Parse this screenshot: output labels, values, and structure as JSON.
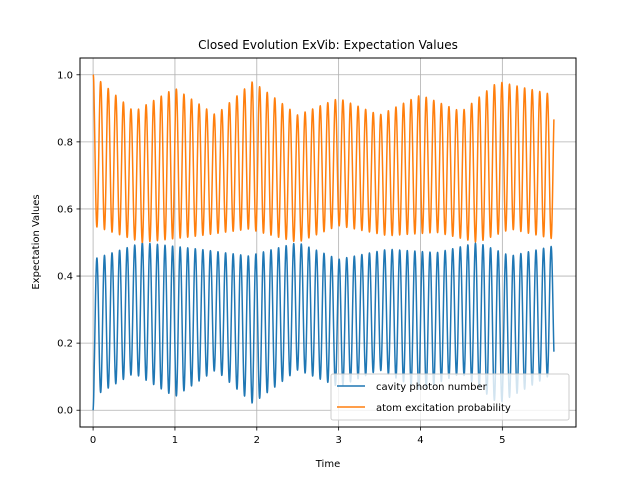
{
  "chart_data": {
    "type": "line",
    "title": "Closed Evolution ExVib: Expectation Values",
    "xlabel": "Time",
    "ylabel": "Expectation Values",
    "xlim": [
      -0.16,
      5.9
    ],
    "ylim": [
      -0.05,
      1.05
    ],
    "x_ticks": [
      "0",
      "1",
      "2",
      "3",
      "4",
      "5"
    ],
    "y_ticks": [
      "0.0",
      "0.2",
      "0.4",
      "0.6",
      "0.8",
      "1.0"
    ],
    "grid": true,
    "legend_position": "lower right",
    "oscillation": {
      "x_end": 5.63,
      "period": 0.0925
    },
    "series": [
      {
        "name": "cavity photon number",
        "color": "#1f77b4",
        "start_value": 0.0,
        "peak_envelope": [
          [
            0,
            0.45
          ],
          [
            0.6,
            0.5
          ],
          [
            1.3,
            0.48
          ],
          [
            1.9,
            0.46
          ],
          [
            2.5,
            0.5
          ],
          [
            3.0,
            0.45
          ],
          [
            3.6,
            0.48
          ],
          [
            4.2,
            0.47
          ],
          [
            4.7,
            0.5
          ],
          [
            5.1,
            0.46
          ],
          [
            5.63,
            0.49
          ]
        ],
        "trough_envelope": [
          [
            0,
            0.04
          ],
          [
            0.5,
            0.11
          ],
          [
            1.0,
            0.04
          ],
          [
            1.5,
            0.12
          ],
          [
            1.95,
            0.02
          ],
          [
            2.5,
            0.12
          ],
          [
            3.0,
            0.07
          ],
          [
            3.5,
            0.12
          ],
          [
            4.0,
            0.06
          ],
          [
            4.5,
            0.11
          ],
          [
            4.95,
            0.02
          ],
          [
            5.63,
            0.11
          ]
        ]
      },
      {
        "name": "atom excitation probability",
        "color": "#ff7f0e",
        "start_value": 1.0,
        "peak_envelope": [
          [
            0,
            1.0
          ],
          [
            0.5,
            0.89
          ],
          [
            1.0,
            0.96
          ],
          [
            1.5,
            0.88
          ],
          [
            1.95,
            0.98
          ],
          [
            2.5,
            0.88
          ],
          [
            3.0,
            0.93
          ],
          [
            3.5,
            0.88
          ],
          [
            4.0,
            0.94
          ],
          [
            4.5,
            0.89
          ],
          [
            4.95,
            0.98
          ],
          [
            5.63,
            0.94
          ]
        ],
        "trough_envelope": [
          [
            0,
            0.55
          ],
          [
            0.6,
            0.5
          ],
          [
            1.3,
            0.52
          ],
          [
            1.9,
            0.54
          ],
          [
            2.5,
            0.5
          ],
          [
            3.0,
            0.55
          ],
          [
            3.6,
            0.52
          ],
          [
            4.2,
            0.53
          ],
          [
            4.7,
            0.5
          ],
          [
            5.1,
            0.54
          ],
          [
            5.63,
            0.51
          ]
        ]
      }
    ]
  }
}
